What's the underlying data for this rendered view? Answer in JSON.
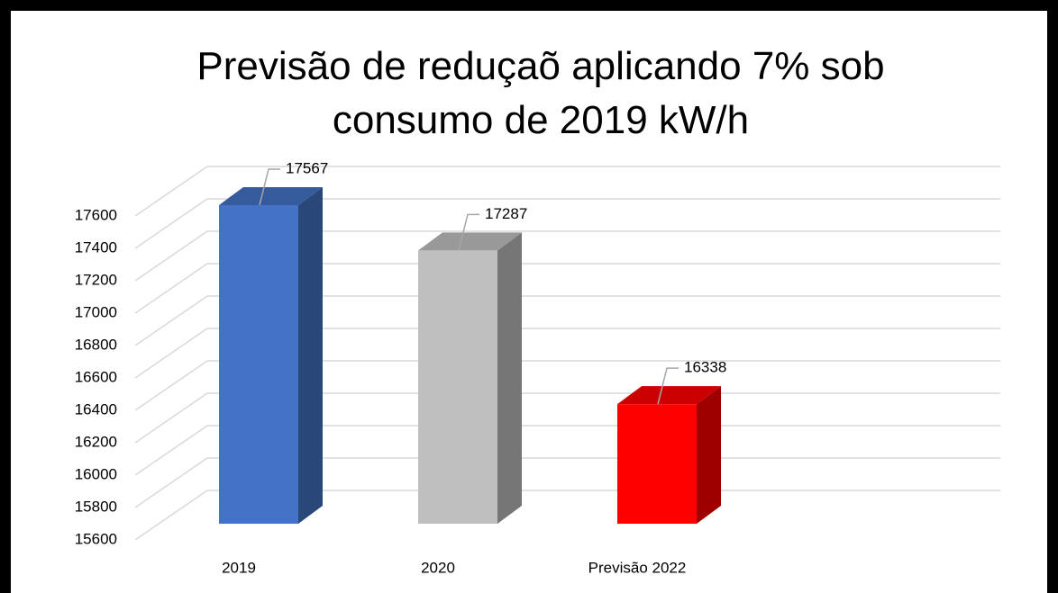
{
  "chart_data": {
    "type": "bar3d",
    "title": "Previsão de reduçaõ aplicando 7% sob consumo de 2019 kW/h",
    "categories": [
      "2019",
      "2020",
      "Previsão 2022"
    ],
    "values": [
      17567,
      17287,
      16338
    ],
    "colors": [
      "#4472c4",
      "#bfbfbf",
      "#ff0000"
    ],
    "ylim": [
      15600,
      17600
    ],
    "yticks": [
      15600,
      15800,
      16000,
      16200,
      16400,
      16600,
      16800,
      17000,
      17200,
      17400,
      17600
    ],
    "grid": true
  }
}
